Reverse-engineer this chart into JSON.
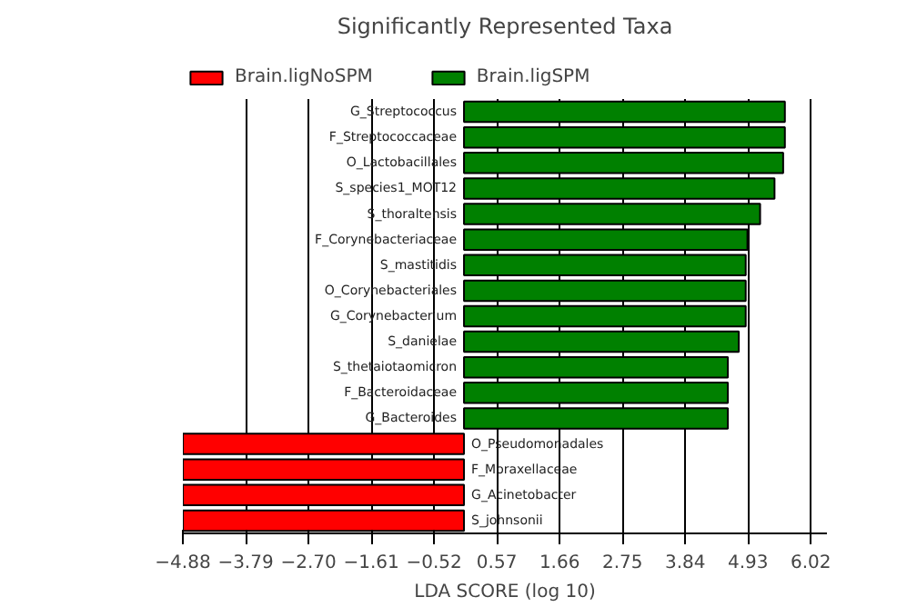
{
  "chart_data": {
    "type": "bar",
    "orientation": "horizontal",
    "title": "Significantly Represented Taxa",
    "xlabel": "LDA SCORE (log 10)",
    "categories": [
      "G_Streptococcus",
      "F_Streptococcaceae",
      "O_Lactobacillales",
      "S_species1_MOT12",
      "S_thoraltensis",
      "F_Corynebacteriaceae",
      "S_mastitidis",
      "O_Corynebacteriales",
      "G_Corynebacterium",
      "S_danielae",
      "S_thetaiotaomicron",
      "F_Bacteroidaceae",
      "G_Bacteroides",
      "O_Pseudomonadales",
      "F_Moraxellaceae",
      "G_Acinetobacter",
      "S_johnsonii"
    ],
    "series": [
      {
        "name": "Brain.ligNoSPM",
        "color": "#ff0000",
        "values": [
          null,
          null,
          null,
          null,
          null,
          null,
          null,
          null,
          null,
          null,
          null,
          null,
          null,
          -4.88,
          -4.88,
          -4.88,
          -4.88
        ]
      },
      {
        "name": "Brain.ligSPM",
        "color": "#008000",
        "values": [
          5.57,
          5.57,
          5.54,
          5.39,
          5.14,
          4.92,
          4.89,
          4.89,
          4.89,
          4.77,
          4.58,
          4.58,
          4.58,
          null,
          null,
          null,
          null
        ]
      }
    ],
    "xlim": [
      -4.88,
      6.3
    ],
    "xticks": [
      {
        "value": -4.88,
        "label": "−4.88"
      },
      {
        "value": -3.79,
        "label": "−3.79"
      },
      {
        "value": -2.7,
        "label": "−2.70"
      },
      {
        "value": -1.61,
        "label": "−1.61"
      },
      {
        "value": -0.52,
        "label": "−0.52"
      },
      0.57,
      1.66,
      2.75,
      3.84,
      4.93,
      6.02
    ],
    "grid": "x",
    "legend": "top"
  }
}
